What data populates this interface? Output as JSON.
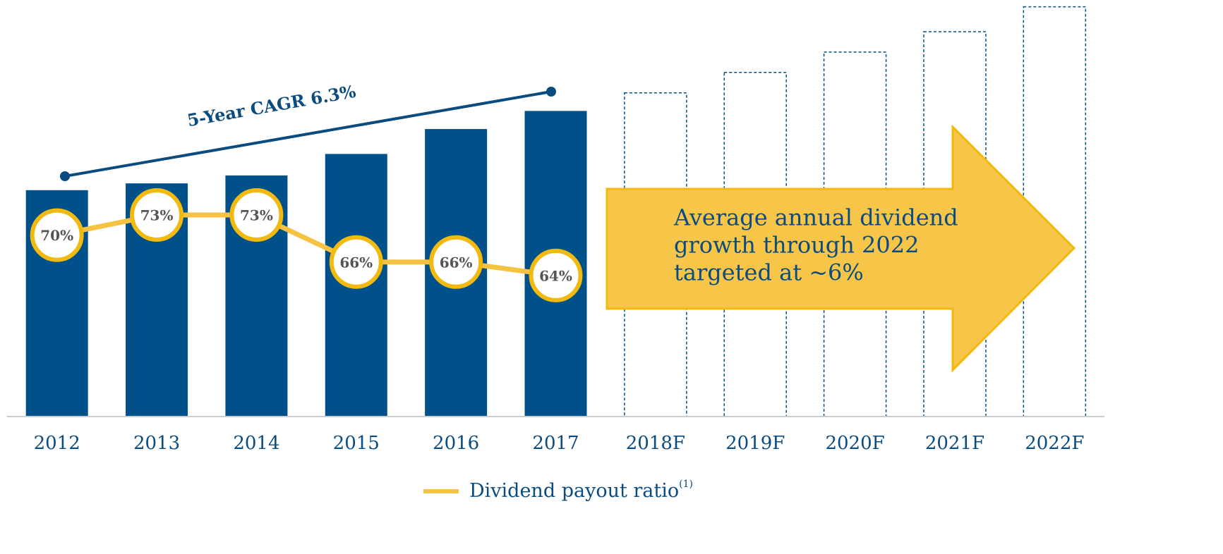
{
  "chart_data": {
    "type": "bar",
    "categories": [
      "2012",
      "2013",
      "2014",
      "2015",
      "2016",
      "2017",
      "2018F",
      "2019F",
      "2020F",
      "2021F",
      "2022F"
    ],
    "ylim": [
      0,
      1.84
    ],
    "y2lim": [
      43,
      105
    ],
    "series": [
      {
        "color": "#00508a",
        "values": [
          1.0,
          1.03,
          1.065,
          1.16,
          1.27,
          1.35,
          null,
          null,
          null,
          null,
          null
        ]
      },
      {
        "color": "#00508a",
        "style": "dashed",
        "values": [
          null,
          null,
          null,
          null,
          null,
          null,
          1.43,
          1.52,
          1.61,
          1.7,
          1.81
        ]
      },
      {
        "name": "Dividend payout ratio",
        "name_superscript": "(1)",
        "type": "line",
        "axis": "y2",
        "color": "#f5c242",
        "marker_edge": "#f2b90f",
        "values": [
          70,
          73,
          73,
          66,
          66,
          64,
          null,
          null,
          null,
          null,
          null
        ],
        "value_labels": [
          "70%",
          "73%",
          "73%",
          "66%",
          "66%",
          "64%",
          null,
          null,
          null,
          null,
          null
        ]
      }
    ],
    "annotations": {
      "cagr": "5-Year CAGR 6.3%",
      "arrow_text": [
        "Average annual dividend",
        "growth through 2022",
        "targeted at ~6%"
      ]
    }
  }
}
